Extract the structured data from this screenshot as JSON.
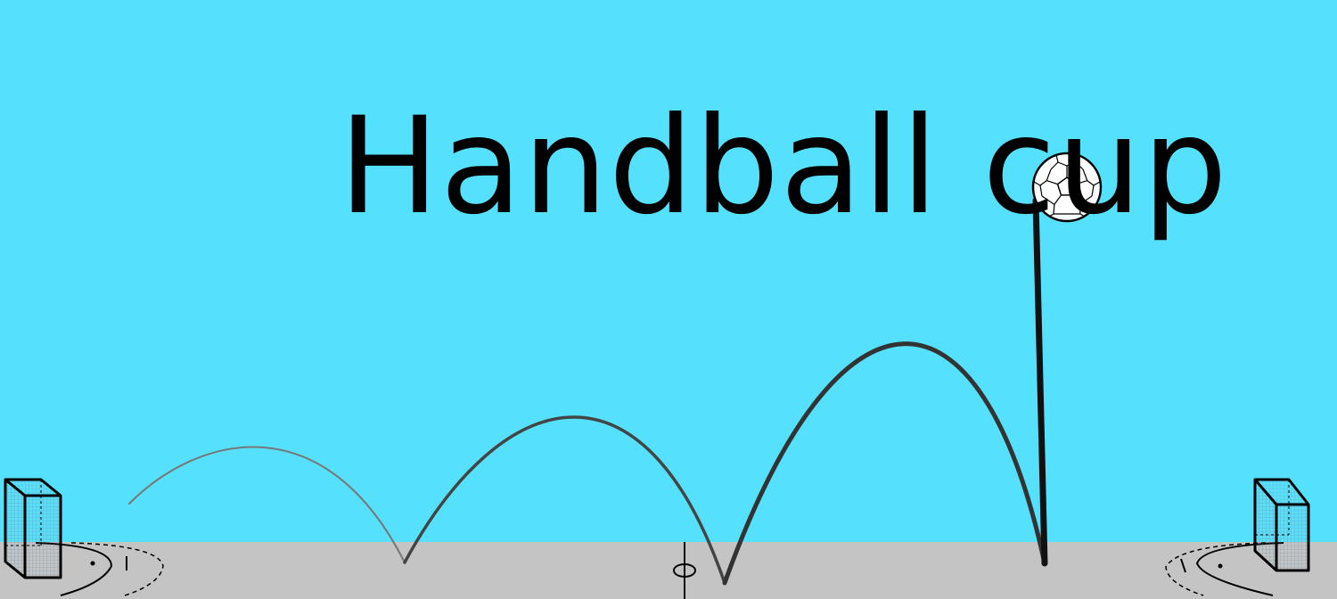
{
  "title": "Handball cup",
  "colors": {
    "sky": "#55e1fd",
    "floor": "#c4c4c4",
    "title": "#000000",
    "trajectory": "#333333",
    "court_lines": "#000000"
  },
  "icons": {
    "ball": "handball-icon",
    "left_goal": "goal-icon",
    "right_goal": "goal-icon"
  }
}
